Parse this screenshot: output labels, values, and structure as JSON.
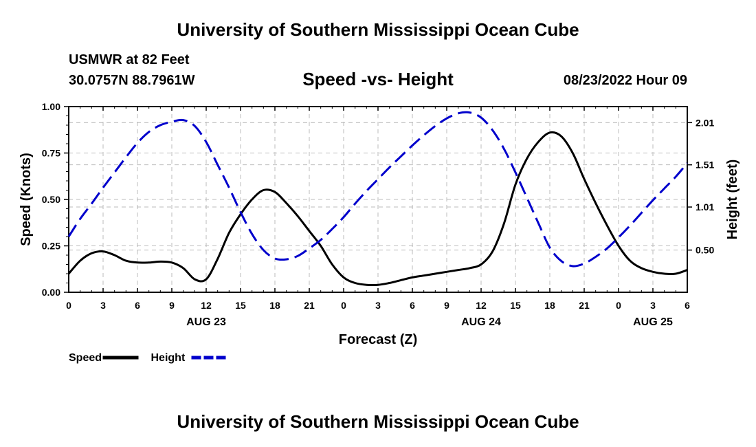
{
  "page": {
    "title_top": "University of Southern Mississippi Ocean Cube",
    "title_bottom": "University of Southern Mississippi Ocean Cube",
    "station": "USMWR at 82 Feet",
    "coordinates": "30.0757N  88.7961W",
    "chart_title": "Speed -vs- Height",
    "datetime": "08/23/2022 Hour 09"
  },
  "colors": {
    "speed": "#000000",
    "height": "#0000cc",
    "grid": "#bbbbbb"
  },
  "chart_data": {
    "type": "line",
    "title": "Speed -vs- Height",
    "xlabel": "Forecast (Z)",
    "ylabel": "Speed (Knots)",
    "ylabel_right": "Height (feet)",
    "xlim": [
      0,
      54
    ],
    "ylim": [
      0,
      1
    ],
    "ylim_right": [
      0.0,
      2.2
    ],
    "grid": true,
    "legend_position": "bottom-left",
    "x_tick_values": [
      0,
      3,
      6,
      9,
      12,
      15,
      18,
      21,
      24,
      27,
      30,
      33,
      36,
      39,
      42,
      45,
      48,
      51,
      54
    ],
    "x_tick_labels": [
      "0",
      "3",
      "6",
      "9",
      "12",
      "15",
      "18",
      "21",
      "0",
      "3",
      "6",
      "9",
      "12",
      "15",
      "18",
      "21",
      "0",
      "3",
      "6"
    ],
    "date_labels": [
      {
        "x": 12,
        "label": "AUG 23"
      },
      {
        "x": 36,
        "label": "AUG 24"
      },
      {
        "x": 51,
        "label": "AUG 25"
      }
    ],
    "y_ticks": [
      "0.00",
      "0.25",
      "0.50",
      "0.75",
      "1.00"
    ],
    "y_tick_values": [
      0,
      0.25,
      0.5,
      0.75,
      1.0
    ],
    "y_right_ticks": [
      "0.50",
      "1.01",
      "1.51",
      "2.01"
    ],
    "y_right_tick_values": [
      0.5,
      1.01,
      1.51,
      2.01
    ],
    "series": [
      {
        "name": "Speed",
        "axis": "left",
        "style": "solid",
        "x": [
          0,
          1,
          2,
          3,
          4,
          5,
          6,
          7,
          8,
          9,
          10,
          11,
          12,
          13,
          14,
          15,
          16,
          17,
          18,
          19,
          20,
          21,
          22,
          23,
          24,
          25,
          26,
          27,
          28,
          29,
          30,
          31,
          32,
          33,
          34,
          35,
          36,
          37,
          38,
          39,
          40,
          41,
          42,
          43,
          44,
          45,
          46,
          47,
          48,
          49,
          50,
          51,
          52,
          53,
          54
        ],
        "values": [
          0.1,
          0.17,
          0.21,
          0.22,
          0.2,
          0.17,
          0.16,
          0.16,
          0.165,
          0.16,
          0.13,
          0.07,
          0.07,
          0.18,
          0.32,
          0.42,
          0.5,
          0.55,
          0.54,
          0.48,
          0.41,
          0.33,
          0.25,
          0.15,
          0.08,
          0.05,
          0.04,
          0.04,
          0.05,
          0.065,
          0.08,
          0.09,
          0.1,
          0.11,
          0.12,
          0.13,
          0.15,
          0.22,
          0.37,
          0.58,
          0.72,
          0.81,
          0.86,
          0.84,
          0.75,
          0.61,
          0.48,
          0.36,
          0.25,
          0.17,
          0.13,
          0.11,
          0.1,
          0.1,
          0.12
        ]
      },
      {
        "name": "Height",
        "axis": "right",
        "style": "dashed",
        "x": [
          0,
          1,
          2,
          3,
          4,
          5,
          6,
          7,
          8,
          9,
          10,
          11,
          12,
          13,
          14,
          15,
          16,
          17,
          18,
          19,
          20,
          21,
          22,
          23,
          24,
          25,
          26,
          27,
          28,
          29,
          30,
          31,
          32,
          33,
          34,
          35,
          36,
          37,
          38,
          39,
          40,
          41,
          42,
          43,
          44,
          45,
          46,
          47,
          48,
          49,
          50,
          51,
          52,
          53,
          54
        ],
        "values": [
          0.66,
          0.87,
          1.05,
          1.24,
          1.42,
          1.6,
          1.77,
          1.9,
          1.98,
          2.02,
          2.04,
          1.97,
          1.78,
          1.51,
          1.24,
          0.95,
          0.69,
          0.5,
          0.4,
          0.39,
          0.43,
          0.52,
          0.62,
          0.75,
          0.89,
          1.05,
          1.2,
          1.34,
          1.48,
          1.61,
          1.74,
          1.86,
          1.97,
          2.06,
          2.12,
          2.13,
          2.07,
          1.92,
          1.7,
          1.42,
          1.12,
          0.82,
          0.53,
          0.37,
          0.31,
          0.34,
          0.42,
          0.52,
          0.65,
          0.79,
          0.94,
          1.09,
          1.23,
          1.37,
          1.53
        ]
      }
    ]
  }
}
